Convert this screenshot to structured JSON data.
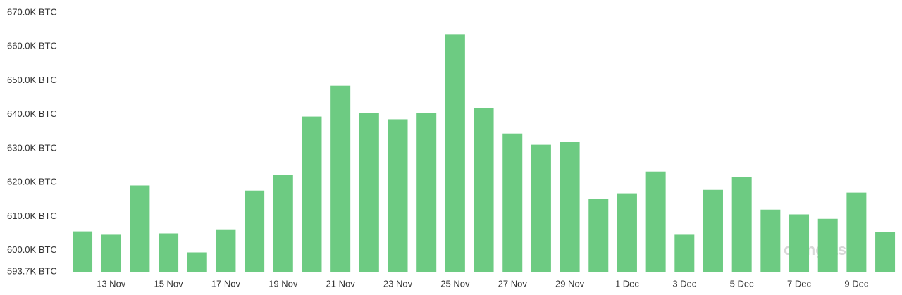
{
  "chart_data": {
    "type": "bar",
    "categories": [
      null,
      "13 Nov",
      null,
      "15 Nov",
      null,
      "17 Nov",
      null,
      "19 Nov",
      null,
      "21 Nov",
      null,
      "23 Nov",
      null,
      "25 Nov",
      null,
      "27 Nov",
      null,
      "29 Nov",
      null,
      "1 Dec",
      null,
      "3 Dec",
      null,
      "5 Dec",
      null,
      "7 Dec",
      null,
      "9 Dec",
      null
    ],
    "values": [
      605600,
      604600,
      619100,
      605000,
      599400,
      606200,
      617600,
      622200,
      639400,
      648500,
      640500,
      638600,
      640500,
      663500,
      641900,
      634400,
      631100,
      632000,
      615100,
      616800,
      623200,
      604600,
      617800,
      621600,
      612000,
      610600,
      609300,
      617000,
      605400
    ],
    "color": "#6dcb82",
    "ylim": [
      593700,
      670000
    ],
    "yticks": [
      {
        "value": 593700,
        "label": "593.7K BTC"
      },
      {
        "value": 600000,
        "label": "600.0K BTC"
      },
      {
        "value": 610000,
        "label": "610.0K BTC"
      },
      {
        "value": 620000,
        "label": "620.0K BTC"
      },
      {
        "value": 630000,
        "label": "630.0K BTC"
      },
      {
        "value": 640000,
        "label": "640.0K BTC"
      },
      {
        "value": 650000,
        "label": "650.0K BTC"
      },
      {
        "value": 660000,
        "label": "660.0K BTC"
      },
      {
        "value": 670000,
        "label": "670.0K BTC"
      }
    ],
    "grid": false,
    "watermark": "coinglass"
  }
}
